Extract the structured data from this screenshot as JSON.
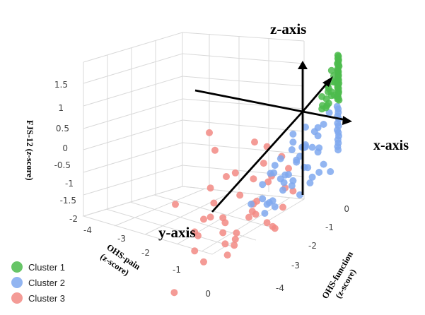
{
  "chart_data": {
    "type": "scatter",
    "dimensions": 3,
    "axis_names": {
      "x": "x-axis",
      "y": "y-axis",
      "z": "z-axis"
    },
    "axes": {
      "vertical": {
        "label_line1": "FJS-12 (",
        "label_italic": "z",
        "label_line2": "-score)",
        "ticks": [
          "1.5",
          "1",
          "0.5",
          "0",
          "-0.5",
          "-1",
          "-1.5",
          "-2"
        ]
      },
      "pain": {
        "label_line1": "OHS-pain",
        "label_line2": "(z-score)",
        "ticks": [
          "-4",
          "-3",
          "-2",
          "-1",
          "0"
        ]
      },
      "function": {
        "label_line1": "OHS-function",
        "label_line2": "(z-score)",
        "ticks": [
          "0",
          "-1",
          "-2",
          "-3",
          "-4"
        ]
      }
    },
    "legend": [
      {
        "name": "Cluster 1",
        "color": "#4cbb4c"
      },
      {
        "name": "Cluster 2",
        "color": "#7fa8ef"
      },
      {
        "name": "Cluster 3",
        "color": "#f28a84"
      }
    ],
    "series": [
      {
        "name": "Cluster 1",
        "color": "#4cbb4c",
        "points": [
          [
            -0.05,
            -0.03,
            1.7
          ],
          [
            -0.03,
            -0.02,
            1.65
          ],
          [
            -0.02,
            -0.04,
            1.6
          ],
          [
            -0.04,
            -0.01,
            1.55
          ],
          [
            -0.01,
            -0.03,
            1.5
          ],
          [
            -0.03,
            -0.05,
            1.45
          ],
          [
            -0.02,
            -0.02,
            1.4
          ],
          [
            -0.01,
            -0.01,
            1.35
          ],
          [
            -0.04,
            -0.03,
            1.3
          ],
          [
            -0.02,
            -0.05,
            1.25
          ],
          [
            -0.03,
            -0.02,
            1.2
          ],
          [
            -0.01,
            -0.04,
            1.15
          ],
          [
            -0.05,
            -0.01,
            1.1
          ],
          [
            -0.02,
            -0.03,
            1.05
          ],
          [
            -0.03,
            -0.04,
            1.0
          ],
          [
            -0.01,
            -0.02,
            0.95
          ],
          [
            -0.04,
            -0.05,
            0.9
          ],
          [
            -0.02,
            -0.01,
            0.85
          ],
          [
            -0.03,
            -0.03,
            0.8
          ],
          [
            -0.01,
            -0.05,
            0.75
          ],
          [
            -0.02,
            -0.02,
            0.7
          ],
          [
            -0.04,
            -0.04,
            0.65
          ],
          [
            -0.03,
            -0.01,
            0.6
          ],
          [
            -0.01,
            -0.03,
            0.55
          ],
          [
            -0.02,
            -0.05,
            0.5
          ],
          [
            -0.05,
            -0.02,
            0.45
          ],
          [
            -0.03,
            -0.04,
            0.4
          ],
          [
            -0.01,
            -0.01,
            0.35
          ],
          [
            -0.2,
            -0.1,
            1.2
          ],
          [
            -0.25,
            -0.05,
            1.0
          ],
          [
            -0.3,
            -0.15,
            0.8
          ],
          [
            -0.15,
            -0.1,
            0.6
          ],
          [
            -0.35,
            -0.2,
            0.5
          ],
          [
            -0.2,
            -0.25,
            0.9
          ],
          [
            -0.4,
            -0.1,
            0.7
          ],
          [
            -0.3,
            -0.3,
            0.4
          ],
          [
            -0.1,
            -0.35,
            0.6
          ],
          [
            -0.5,
            -0.2,
            0.5
          ],
          [
            -0.25,
            -0.15,
            1.4
          ],
          [
            -0.45,
            -0.05,
            1.1
          ],
          [
            -0.6,
            -0.3,
            0.6
          ],
          [
            -0.35,
            -0.4,
            0.8
          ],
          [
            -0.15,
            -0.3,
            1.0
          ],
          [
            -0.55,
            -0.15,
            0.9
          ],
          [
            -0.2,
            -0.45,
            0.4
          ]
        ]
      },
      {
        "name": "Cluster 2",
        "color": "#7fa8ef",
        "points": [
          [
            -0.05,
            -0.05,
            0.2
          ],
          [
            -0.02,
            -0.03,
            0.1
          ],
          [
            -0.04,
            -0.02,
            0.0
          ],
          [
            -0.01,
            -0.05,
            -0.1
          ],
          [
            -0.03,
            -0.01,
            -0.2
          ],
          [
            -0.05,
            -0.04,
            -0.3
          ],
          [
            -0.02,
            -0.02,
            -0.4
          ],
          [
            -0.04,
            -0.05,
            -0.5
          ],
          [
            -0.01,
            -0.03,
            -0.6
          ],
          [
            -0.03,
            -0.01,
            -0.7
          ],
          [
            -0.02,
            -0.04,
            -0.8
          ],
          [
            -0.04,
            -0.02,
            -0.9
          ],
          [
            -0.01,
            -0.05,
            -1.0
          ],
          [
            -0.03,
            -0.03,
            -1.1
          ],
          [
            -0.3,
            -0.2,
            0.2
          ],
          [
            -0.5,
            -0.3,
            0.0
          ],
          [
            -0.7,
            -0.4,
            -0.2
          ],
          [
            -0.4,
            -0.6,
            -0.1
          ],
          [
            -0.9,
            -0.5,
            -0.4
          ],
          [
            -0.6,
            -0.8,
            -0.3
          ],
          [
            -1.0,
            -0.3,
            -0.6
          ],
          [
            -0.8,
            -0.9,
            -0.5
          ],
          [
            -1.2,
            -0.6,
            -0.2
          ],
          [
            -0.5,
            -1.1,
            -0.7
          ],
          [
            -1.4,
            -0.8,
            -0.4
          ],
          [
            -0.9,
            -1.3,
            -0.8
          ],
          [
            -1.1,
            -1.0,
            0.1
          ],
          [
            -1.6,
            -0.5,
            -0.1
          ],
          [
            -0.7,
            -1.5,
            -0.3
          ],
          [
            -1.3,
            -1.2,
            -0.9
          ],
          [
            -1.8,
            -0.9,
            -0.6
          ],
          [
            -1.0,
            -1.7,
            -0.5
          ],
          [
            -1.5,
            -1.4,
            -0.2
          ],
          [
            -0.4,
            -0.9,
            -1.0
          ],
          [
            -0.8,
            -0.2,
            -1.1
          ],
          [
            -1.2,
            -0.4,
            -1.2
          ],
          [
            -0.6,
            -1.2,
            -1.3
          ],
          [
            -1.7,
            -1.1,
            -1.0
          ],
          [
            -2.0,
            -0.7,
            -0.8
          ],
          [
            -1.1,
            -1.9,
            -1.1
          ],
          [
            -0.3,
            -0.5,
            -1.4
          ],
          [
            -0.5,
            -0.1,
            -1.5
          ],
          [
            -0.2,
            -0.8,
            -1.6
          ],
          [
            -1.9,
            -1.3,
            -0.3
          ],
          [
            -1.4,
            -1.8,
            -0.6
          ],
          [
            -2.2,
            -1.0,
            -0.5
          ],
          [
            -1.6,
            -1.6,
            -1.2
          ],
          [
            -0.9,
            -0.7,
            0.3
          ],
          [
            -1.3,
            -0.2,
            0.2
          ],
          [
            -0.2,
            -1.3,
            0.1
          ],
          [
            -2.1,
            -1.5,
            -1.3
          ],
          [
            -1.8,
            -2.0,
            -0.9
          ],
          [
            -0.6,
            -0.4,
            -0.6
          ],
          [
            -1.0,
            -0.6,
            -0.9
          ],
          [
            -0.3,
            -1.0,
            -0.4
          ],
          [
            -1.5,
            -0.9,
            0.0
          ],
          [
            -2.3,
            -1.2,
            -1.0
          ],
          [
            -1.2,
            -1.5,
            -1.5
          ],
          [
            -0.8,
            -1.8,
            -1.4
          ],
          [
            -1.7,
            -0.6,
            -1.4
          ]
        ]
      },
      {
        "name": "Cluster 3",
        "color": "#f28a84",
        "points": [
          [
            -0.1,
            -3.8,
            1.4
          ],
          [
            -1.5,
            -2.0,
            0.8
          ],
          [
            -0.5,
            -3.5,
            0.9
          ],
          [
            -2.5,
            -1.4,
            0.3
          ],
          [
            -3.0,
            -3.0,
            -0.3
          ],
          [
            -1.8,
            -3.2,
            0.2
          ],
          [
            -0.8,
            -2.8,
            0.0
          ],
          [
            -2.2,
            -2.6,
            0.4
          ],
          [
            -3.5,
            -2.2,
            -0.6
          ],
          [
            -1.0,
            -2.2,
            -0.4
          ],
          [
            -2.8,
            -2.0,
            -0.2
          ],
          [
            -1.6,
            -1.6,
            0.5
          ],
          [
            -3.2,
            -1.4,
            -0.9
          ],
          [
            -2.0,
            -3.6,
            -0.8
          ],
          [
            -0.6,
            -1.8,
            -0.7
          ],
          [
            -2.6,
            -3.4,
            -1.2
          ],
          [
            -1.3,
            -3.0,
            -1.0
          ],
          [
            -3.6,
            -2.8,
            -1.4
          ],
          [
            -0.4,
            -2.4,
            -1.3
          ],
          [
            -1.9,
            -2.4,
            -1.5
          ],
          [
            -2.9,
            -1.0,
            -1.6
          ],
          [
            -1.2,
            -1.2,
            -1.1
          ],
          [
            -3.8,
            -3.6,
            -1.8
          ],
          [
            -0.9,
            -1.4,
            -0.2
          ],
          [
            -2.3,
            -1.8,
            -1.0
          ],
          [
            -1.5,
            -1.0,
            -0.5
          ],
          [
            -3.3,
            -2.6,
            0.1
          ],
          [
            -0.7,
            -3.2,
            -1.6
          ],
          [
            -2.7,
            -2.4,
            -1.8
          ],
          [
            -1.1,
            -3.8,
            -1.2
          ],
          [
            -3.9,
            -1.8,
            -1.3
          ],
          [
            -0.3,
            -2.0,
            -0.9
          ],
          [
            -2.1,
            -1.2,
            -1.9
          ],
          [
            -1.7,
            -2.8,
            -1.7
          ],
          [
            -3.1,
            -3.8,
            0.6
          ],
          [
            -0.2,
            -1.6,
            -1.9
          ],
          [
            -2.4,
            -3.0,
            -0.5
          ],
          [
            -1.4,
            -2.6,
            -1.8
          ],
          [
            -3.7,
            -1.2,
            -0.4
          ],
          [
            -0.5,
            -1.2,
            -1.5
          ],
          [
            -2.0,
            -2.0,
            -1.2
          ],
          [
            -1.0,
            -1.8,
            -1.9
          ]
        ]
      }
    ]
  }
}
